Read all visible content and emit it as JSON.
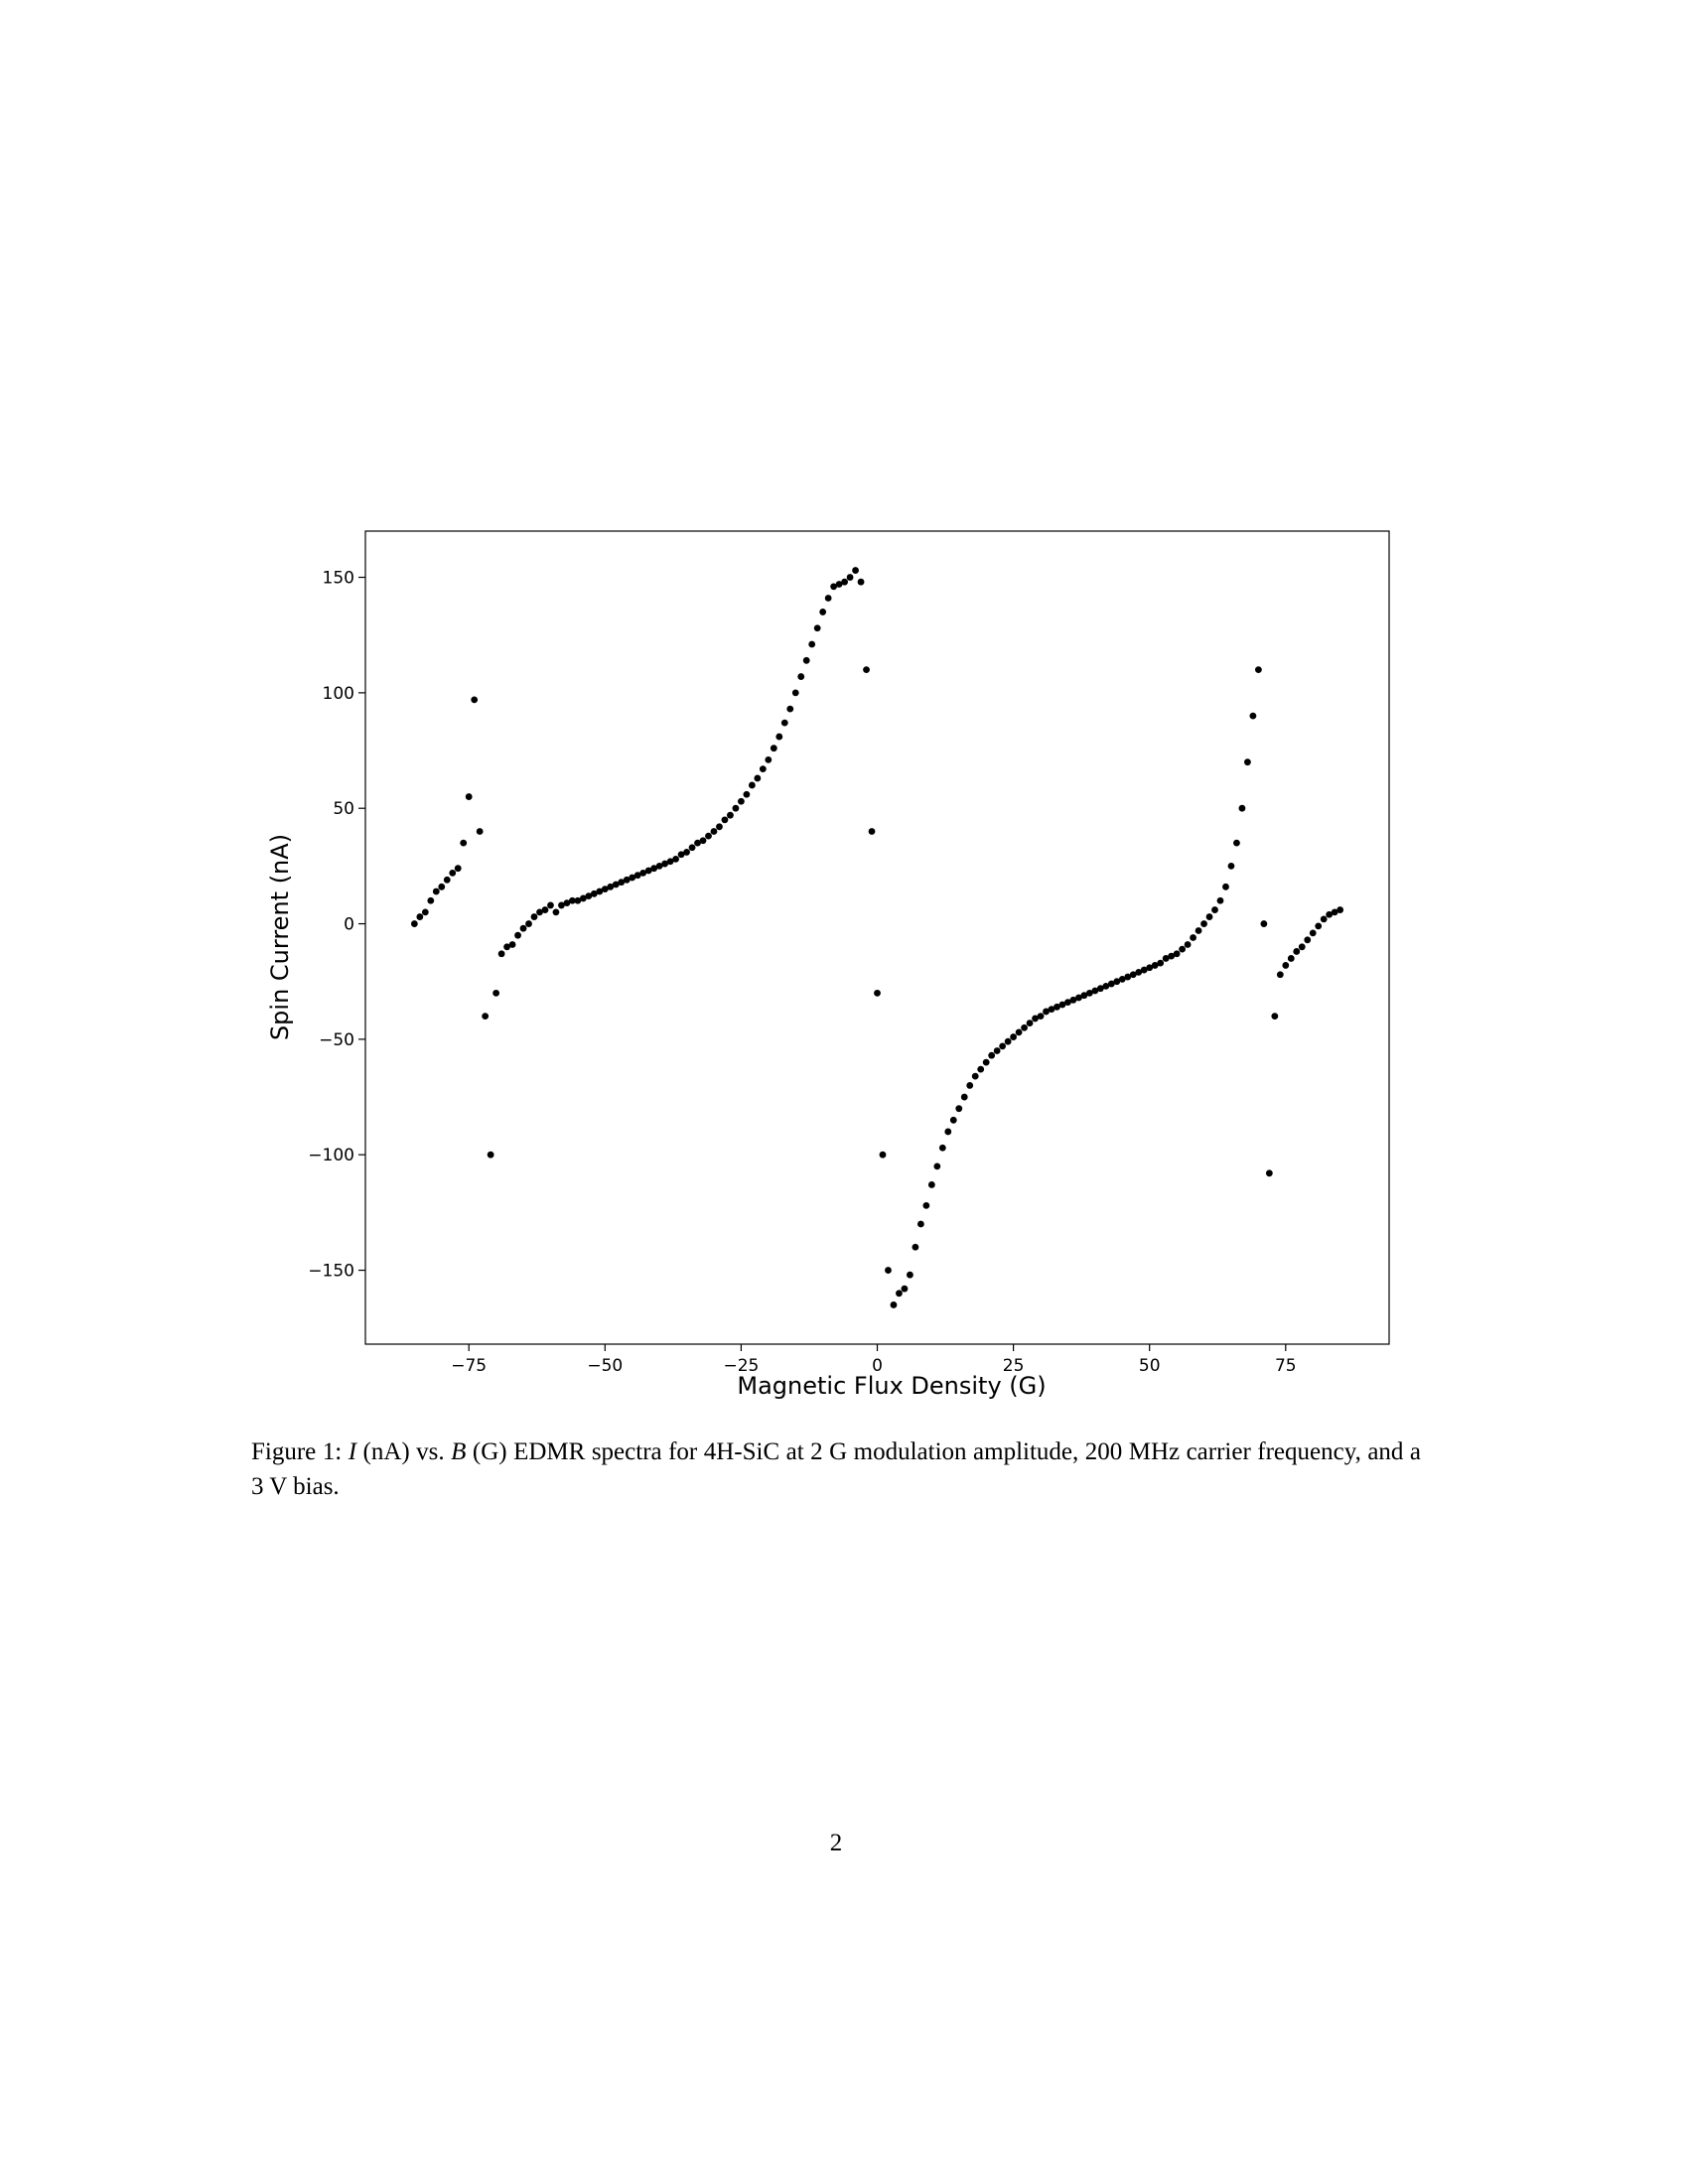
{
  "chart_data": {
    "type": "scatter",
    "xlabel": "Magnetic Flux Density (G)",
    "ylabel": "Spin Current (nA)",
    "color": "#000000",
    "xlim": [
      -94,
      94
    ],
    "ylim": [
      -182,
      170
    ],
    "xticks": [
      {
        "value": -75,
        "label": "−75"
      },
      {
        "value": -50,
        "label": "−50"
      },
      {
        "value": -25,
        "label": "−25"
      },
      0,
      25,
      50,
      75
    ],
    "yticks": [
      {
        "value": -150,
        "label": "−150"
      },
      {
        "value": -100,
        "label": "−100"
      },
      {
        "value": -50,
        "label": "−50"
      },
      0,
      50,
      100,
      150
    ],
    "x": [
      -85,
      -84,
      -83,
      -82,
      -81,
      -80,
      -79,
      -78,
      -77,
      -76,
      -75,
      -74,
      -73,
      -72,
      -71,
      -70,
      -69,
      -68,
      -67,
      -66,
      -65,
      -64,
      -63,
      -62,
      -61,
      -60,
      -59,
      -58,
      -57,
      -56,
      -55,
      -54,
      -53,
      -52,
      -51,
      -50,
      -49,
      -48,
      -47,
      -46,
      -45,
      -44,
      -43,
      -42,
      -41,
      -40,
      -39,
      -38,
      -37,
      -36,
      -35,
      -34,
      -33,
      -32,
      -31,
      -30,
      -29,
      -28,
      -27,
      -26,
      -25,
      -24,
      -23,
      -22,
      -21,
      -20,
      -19,
      -18,
      -17,
      -16,
      -15,
      -14,
      -13,
      -12,
      -11,
      -10,
      -9,
      -8,
      -7,
      -6,
      -5,
      -4,
      -3,
      -2,
      -1,
      0,
      1,
      2,
      3,
      4,
      5,
      6,
      7,
      8,
      9,
      10,
      11,
      12,
      13,
      14,
      15,
      16,
      17,
      18,
      19,
      20,
      21,
      22,
      23,
      24,
      25,
      26,
      27,
      28,
      29,
      30,
      31,
      32,
      33,
      34,
      35,
      36,
      37,
      38,
      39,
      40,
      41,
      42,
      43,
      44,
      45,
      46,
      47,
      48,
      49,
      50,
      51,
      52,
      53,
      54,
      55,
      56,
      57,
      58,
      59,
      60,
      61,
      62,
      63,
      64,
      65,
      66,
      67,
      68,
      69,
      70,
      71,
      72,
      73,
      74,
      75,
      76,
      77,
      78,
      79,
      80,
      81,
      82,
      83,
      84,
      85
    ],
    "values": [
      0,
      3,
      5,
      10,
      14,
      16,
      19,
      22,
      24,
      35,
      55,
      97,
      40,
      -40,
      -100,
      -30,
      -13,
      -10,
      -9,
      -5,
      -2,
      0,
      3,
      5,
      6,
      8,
      5,
      8,
      9,
      10,
      10,
      11,
      12,
      13,
      14,
      15,
      16,
      17,
      18,
      19,
      20,
      21,
      22,
      23,
      24,
      25,
      26,
      27,
      28,
      30,
      31,
      33,
      35,
      36,
      38,
      40,
      42,
      45,
      47,
      50,
      53,
      56,
      60,
      63,
      67,
      71,
      76,
      81,
      87,
      93,
      100,
      107,
      114,
      121,
      128,
      135,
      141,
      146,
      147,
      148,
      150,
      153,
      148,
      110,
      40,
      -30,
      -100,
      -150,
      -165,
      -160,
      -158,
      -152,
      -140,
      -130,
      -122,
      -113,
      -105,
      -97,
      -90,
      -85,
      -80,
      -75,
      -70,
      -66,
      -63,
      -60,
      -57,
      -55,
      -53,
      -51,
      -49,
      -47,
      -45,
      -43,
      -41,
      -40,
      -38,
      -37,
      -36,
      -35,
      -34,
      -33,
      -32,
      -31,
      -30,
      -29,
      -28,
      -27,
      -26,
      -25,
      -24,
      -23,
      -22,
      -21,
      -20,
      -19,
      -18,
      -17,
      -15,
      -14,
      -13,
      -11,
      -9,
      -6,
      -3,
      0,
      3,
      6,
      10,
      16,
      25,
      35,
      50,
      70,
      90,
      110,
      0,
      -108,
      -40,
      -22,
      -18,
      -15,
      -12,
      -10,
      -7,
      -4,
      -1,
      2,
      4,
      5,
      6
    ]
  },
  "caption": [
    "Figure 1: ",
    "I",
    " (nA) vs. ",
    "B",
    " (G) EDMR spectra for 4H-SiC at 2 G modulation amplitude, 200 MHz carrier frequency, and a 3 V bias."
  ],
  "page_number": "2"
}
